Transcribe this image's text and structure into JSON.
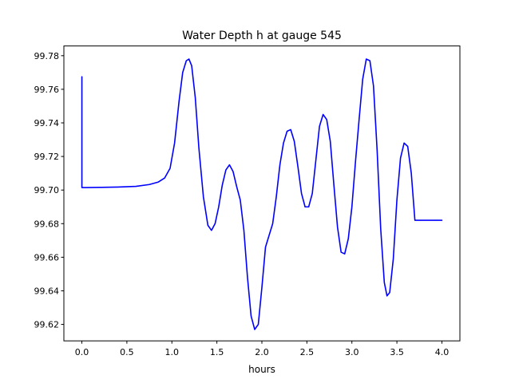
{
  "chart_data": {
    "type": "line",
    "title": "Water Depth h at gauge 545",
    "xlabel": "hours",
    "ylabel": "",
    "xlim": [
      -0.2,
      4.2
    ],
    "ylim": [
      99.6102,
      99.7858
    ],
    "x_ticks": [
      0.0,
      0.5,
      1.0,
      1.5,
      2.0,
      2.5,
      3.0,
      3.5,
      4.0
    ],
    "x_tick_labels": [
      "0.0",
      "0.5",
      "1.0",
      "1.5",
      "2.0",
      "2.5",
      "3.0",
      "3.5",
      "4.0"
    ],
    "y_ticks": [
      99.62,
      99.64,
      99.66,
      99.68,
      99.7,
      99.72,
      99.74,
      99.76,
      99.78
    ],
    "y_tick_labels": [
      "99.62",
      "99.64",
      "99.66",
      "99.68",
      "99.70",
      "99.72",
      "99.74",
      "99.76",
      "99.78"
    ],
    "grid": false,
    "series": [
      {
        "color": "#0000ff",
        "x": [
          0.0,
          0.0,
          0.05,
          0.2,
          0.4,
          0.6,
          0.75,
          0.85,
          0.92,
          0.98,
          1.03,
          1.08,
          1.12,
          1.16,
          1.19,
          1.22,
          1.26,
          1.3,
          1.35,
          1.4,
          1.44,
          1.48,
          1.52,
          1.56,
          1.6,
          1.64,
          1.68,
          1.72,
          1.76,
          1.8,
          1.84,
          1.88,
          1.92,
          1.96,
          2.0,
          2.04,
          2.08,
          2.12,
          2.16,
          2.2,
          2.24,
          2.28,
          2.32,
          2.36,
          2.4,
          2.44,
          2.48,
          2.52,
          2.56,
          2.6,
          2.64,
          2.68,
          2.72,
          2.76,
          2.8,
          2.84,
          2.88,
          2.92,
          2.96,
          3.0,
          3.04,
          3.08,
          3.12,
          3.16,
          3.2,
          3.24,
          3.28,
          3.32,
          3.36,
          3.39,
          3.42,
          3.46,
          3.5,
          3.54,
          3.58,
          3.62,
          3.66,
          3.7,
          3.74,
          3.78,
          3.82,
          3.86,
          3.9,
          3.94,
          3.97,
          4.0
        ],
        "y": [
          99.7675,
          99.7015,
          99.7015,
          99.7016,
          99.7018,
          99.7022,
          99.7033,
          99.7048,
          99.7072,
          99.713,
          99.728,
          99.753,
          99.77,
          99.777,
          99.778,
          99.774,
          99.755,
          99.725,
          99.696,
          99.679,
          99.676,
          99.68,
          99.69,
          99.703,
          99.712,
          99.715,
          99.711,
          99.702,
          99.694,
          99.676,
          99.648,
          99.625,
          99.617,
          99.62,
          99.642,
          99.666,
          99.673,
          99.68,
          99.696,
          99.715,
          99.728,
          99.735,
          99.736,
          99.729,
          99.714,
          99.698,
          99.69,
          99.69,
          99.698,
          99.718,
          99.738,
          99.745,
          99.742,
          99.729,
          99.703,
          99.678,
          99.663,
          99.662,
          99.671,
          99.69,
          99.717,
          99.742,
          99.766,
          99.778,
          99.777,
          99.762,
          99.724,
          99.677,
          99.645,
          99.637,
          99.639,
          99.659,
          99.694,
          99.719,
          99.728,
          99.726,
          99.71,
          99.682,
          99.682,
          99.682,
          99.682,
          99.682,
          99.682,
          99.682,
          99.682,
          99.682
        ]
      }
    ]
  }
}
